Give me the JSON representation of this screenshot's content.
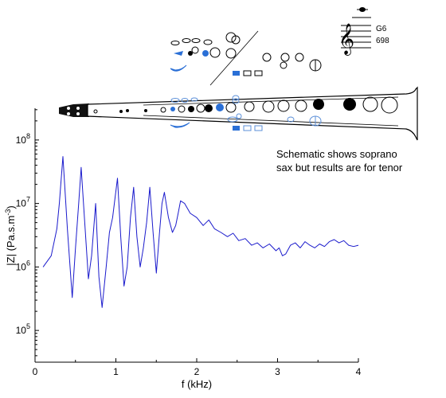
{
  "chart_data": {
    "type": "line",
    "title": "",
    "xlabel": "f (kHz)",
    "ylabel": "|Z| (Pa.s.m",
    "ylabel_sup": "-3",
    "ylabel_close": ")",
    "xlim": [
      0,
      4
    ],
    "ylim_log10": [
      4.5,
      8.5
    ],
    "y_scale": "log",
    "grid": false,
    "x_ticks": [
      0,
      1,
      2,
      3,
      4
    ],
    "x_tick_labels": [
      "0",
      "1",
      "2",
      "3",
      "4"
    ],
    "y_ticks_log10": [
      5,
      6,
      7,
      8
    ],
    "y_tick_base": "10",
    "y_tick_exponents": [
      "5",
      "6",
      "7",
      "8"
    ],
    "series": [
      {
        "color": "#1a1acc",
        "x": [
          0.1,
          0.2,
          0.27,
          0.3,
          0.345,
          0.4,
          0.46,
          0.5,
          0.54,
          0.57,
          0.62,
          0.66,
          0.7,
          0.75,
          0.79,
          0.83,
          0.88,
          0.92,
          0.96,
          1.02,
          1.06,
          1.1,
          1.14,
          1.18,
          1.22,
          1.26,
          1.3,
          1.34,
          1.38,
          1.42,
          1.46,
          1.5,
          1.54,
          1.57,
          1.6,
          1.65,
          1.7,
          1.74,
          1.77,
          1.8,
          1.85,
          1.92,
          2.0,
          2.08,
          2.15,
          2.22,
          2.3,
          2.38,
          2.45,
          2.52,
          2.6,
          2.68,
          2.75,
          2.82,
          2.9,
          2.98,
          3.02,
          3.06,
          3.1,
          3.16,
          3.22,
          3.28,
          3.34,
          3.4,
          3.46,
          3.52,
          3.58,
          3.64,
          3.7,
          3.76,
          3.82,
          3.88,
          3.94,
          4.0
        ],
        "y": [
          1000000.0,
          1500000.0,
          4000000.0,
          10000000.0,
          55000000.0,
          4000000.0,
          330000.0,
          2000000.0,
          10000000.0,
          37000000.0,
          4000000.0,
          650000.0,
          1500000.0,
          10000000.0,
          700000.0,
          230000.0,
          1000000.0,
          3500000.0,
          6000000.0,
          25000000.0,
          3000000.0,
          500000.0,
          1000000.0,
          6000000.0,
          18000000.0,
          3000000.0,
          1000000.0,
          2000000.0,
          5000000.0,
          18000000.0,
          3500000.0,
          800000.0,
          3500000.0,
          10000000.0,
          15000000.0,
          6000000.0,
          3500000.0,
          4500000.0,
          7000000.0,
          11000000.0,
          10000000.0,
          7000000.0,
          6000000.0,
          4500000.0,
          5500000.0,
          4000000.0,
          3500000.0,
          3000000.0,
          3400000.0,
          2600000.0,
          2800000.0,
          2200000.0,
          2400000.0,
          2000000.0,
          2300000.0,
          1800000.0,
          2000000.0,
          1500000.0,
          1600000.0,
          2200000.0,
          2400000.0,
          2000000.0,
          2500000.0,
          2200000.0,
          2000000.0,
          2300000.0,
          2100000.0,
          2500000.0,
          2700000.0,
          2400000.0,
          2600000.0,
          2200000.0,
          2100000.0,
          2200000.0
        ]
      }
    ]
  },
  "annotation": {
    "line1": "Schematic shows soprano",
    "line2": "sax but results are for tenor"
  },
  "note_label": {
    "name": "G6",
    "frequency": "698"
  },
  "colors": {
    "key_blue": "#2a6fd6",
    "outline_blue": "#5b8fd8"
  }
}
